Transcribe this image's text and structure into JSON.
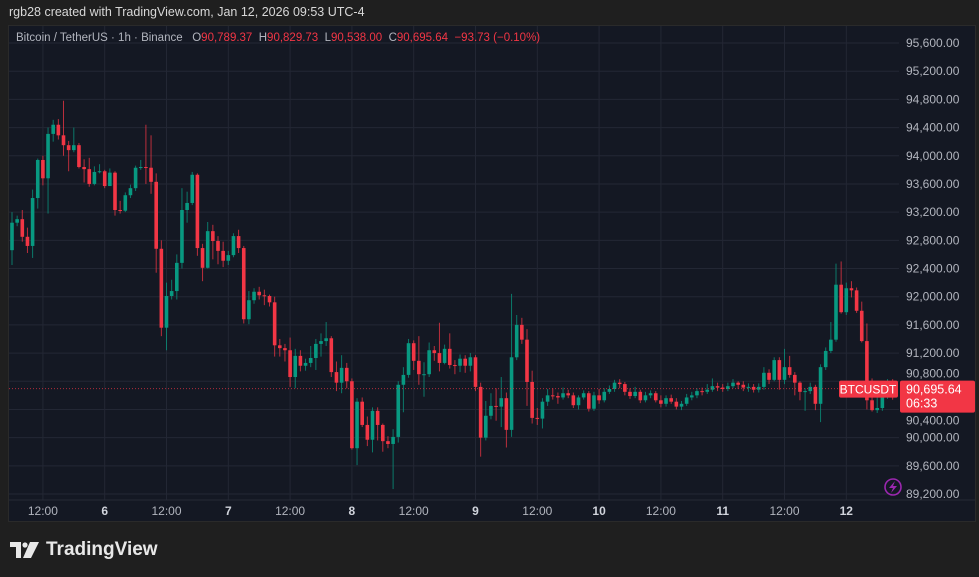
{
  "credit": "rgb28 created with TradingView.com, Jan 12, 2026 09:53 UTC-4",
  "legend": {
    "symbol": "Bitcoin / TetherUS · 1h · Binance",
    "o_label": "O",
    "o": "90,789.37",
    "h_label": "H",
    "h": "90,829.73",
    "l_label": "L",
    "l": "90,538.00",
    "c_label": "C",
    "c": "90,695.64",
    "change": "−93.73 (−0.10%)"
  },
  "price_label": {
    "ticker": "BTCUSDT",
    "price": "90,695.64",
    "countdown": "06:33"
  },
  "logo": "TradingView",
  "colors": {
    "up": "#089981",
    "down": "#f23645",
    "background": "#141823",
    "grid": "#232734",
    "axis_text": "#b2b5be"
  },
  "chart_data": {
    "type": "candlestick",
    "interval": "1h",
    "ylim": [
      89200,
      95600
    ],
    "grid": true,
    "yticks": [
      "95,600.00",
      "95,200.00",
      "94,800.00",
      "94,400.00",
      "94,000.00",
      "93,600.00",
      "93,200.00",
      "92,800.00",
      "92,400.00",
      "92,000.00",
      "91,600.00",
      "91,200.00",
      "90,800.00",
      "90,400.00",
      "90,000.00",
      "89,600.00",
      "89,200.00"
    ],
    "ytick_values": [
      95600,
      95200,
      94800,
      94400,
      94000,
      93600,
      93200,
      92800,
      92400,
      92000,
      91600,
      91200,
      90800,
      90400,
      90000,
      89600,
      89200
    ],
    "xticks": [
      {
        "label": "12:00",
        "candle": 6
      },
      {
        "label": "6",
        "candle": 18
      },
      {
        "label": "12:00",
        "candle": 30
      },
      {
        "label": "7",
        "candle": 42
      },
      {
        "label": "12:00",
        "candle": 54
      },
      {
        "label": "8",
        "candle": 66
      },
      {
        "label": "12:00",
        "candle": 78
      },
      {
        "label": "9",
        "candle": 90
      },
      {
        "label": "12:00",
        "candle": 102
      },
      {
        "label": "10",
        "candle": 114
      },
      {
        "label": "12:00",
        "candle": 126
      },
      {
        "label": "11",
        "candle": 138
      },
      {
        "label": "12:00",
        "candle": 150
      },
      {
        "label": "12",
        "candle": 162
      }
    ],
    "last_price": 90695.64,
    "candles_ohlc": [
      [
        92660,
        93200,
        92450,
        93050
      ],
      [
        93050,
        93150,
        93000,
        93100
      ],
      [
        93100,
        93230,
        92780,
        92850
      ],
      [
        92850,
        92980,
        92620,
        92720
      ],
      [
        92720,
        93520,
        92550,
        93400
      ],
      [
        93400,
        93960,
        93250,
        93940
      ],
      [
        93940,
        94000,
        93580,
        93680
      ],
      [
        93680,
        94400,
        93180,
        94310
      ],
      [
        94310,
        94510,
        94200,
        94440
      ],
      [
        94440,
        94520,
        94230,
        94290
      ],
      [
        94290,
        94780,
        94000,
        94150
      ],
      [
        94150,
        94210,
        93780,
        94080
      ],
      [
        94080,
        94400,
        94050,
        94150
      ],
      [
        94150,
        94180,
        93820,
        93840
      ],
      [
        93840,
        93950,
        93620,
        93810
      ],
      [
        93810,
        93970,
        93560,
        93600
      ],
      [
        93600,
        93850,
        93580,
        93770
      ],
      [
        93770,
        93880,
        93750,
        93780
      ],
      [
        93780,
        93800,
        93540,
        93570
      ],
      [
        93570,
        93820,
        93580,
        93760
      ],
      [
        93760,
        93780,
        93150,
        93230
      ],
      [
        93230,
        93360,
        93180,
        93220
      ],
      [
        93220,
        93480,
        93200,
        93440
      ],
      [
        93440,
        93590,
        93400,
        93540
      ],
      [
        93540,
        93860,
        93500,
        93830
      ],
      [
        93830,
        93940,
        93800,
        93840
      ],
      [
        93840,
        94440,
        93600,
        93830
      ],
      [
        93830,
        94290,
        93460,
        93630
      ],
      [
        93630,
        93750,
        92340,
        92680
      ],
      [
        92680,
        92800,
        91440,
        91560
      ],
      [
        91560,
        92200,
        91240,
        92010
      ],
      [
        92010,
        92240,
        91960,
        92080
      ],
      [
        92080,
        92600,
        91960,
        92480
      ],
      [
        92480,
        93540,
        92400,
        93230
      ],
      [
        93230,
        93490,
        93050,
        93330
      ],
      [
        93330,
        93770,
        93300,
        93730
      ],
      [
        93730,
        93750,
        92580,
        92690
      ],
      [
        92690,
        92750,
        92220,
        92410
      ],
      [
        92410,
        93060,
        92400,
        92930
      ],
      [
        92930,
        93020,
        92530,
        92790
      ],
      [
        92790,
        92860,
        92460,
        92650
      ],
      [
        92650,
        92780,
        92420,
        92510
      ],
      [
        92510,
        92650,
        92450,
        92590
      ],
      [
        92590,
        92900,
        92560,
        92860
      ],
      [
        92860,
        92950,
        92620,
        92690
      ],
      [
        92690,
        92720,
        91620,
        91680
      ],
      [
        91680,
        92080,
        91610,
        91950
      ],
      [
        91950,
        92120,
        91900,
        92070
      ],
      [
        92070,
        92140,
        91960,
        92020
      ],
      [
        92020,
        92100,
        91880,
        92010
      ],
      [
        92010,
        92030,
        91860,
        91920
      ],
      [
        91920,
        92000,
        91150,
        91310
      ],
      [
        91310,
        91400,
        91150,
        91270
      ],
      [
        91270,
        91330,
        91080,
        91240
      ],
      [
        91240,
        91420,
        90720,
        90860
      ],
      [
        90860,
        91260,
        90700,
        91160
      ],
      [
        91160,
        91240,
        90940,
        91020
      ],
      [
        91020,
        91120,
        90950,
        91060
      ],
      [
        91060,
        91300,
        91000,
        91130
      ],
      [
        91130,
        91400,
        90960,
        91330
      ],
      [
        91330,
        91480,
        91150,
        91370
      ],
      [
        91370,
        91640,
        91300,
        91410
      ],
      [
        91410,
        91440,
        90860,
        90930
      ],
      [
        90930,
        91080,
        90660,
        90780
      ],
      [
        90780,
        91170,
        90630,
        90990
      ],
      [
        90990,
        91060,
        90700,
        90800
      ],
      [
        90800,
        90840,
        89830,
        89850
      ],
      [
        89850,
        90560,
        89610,
        90510
      ],
      [
        90510,
        90570,
        90150,
        90180
      ],
      [
        90180,
        90300,
        89880,
        89970
      ],
      [
        89970,
        90430,
        89790,
        90380
      ],
      [
        90380,
        90430,
        89960,
        90180
      ],
      [
        90180,
        90200,
        89800,
        89950
      ],
      [
        89950,
        90020,
        89850,
        89910
      ],
      [
        89910,
        90120,
        89270,
        90010
      ],
      [
        90010,
        90800,
        89930,
        90750
      ],
      [
        90750,
        91000,
        90360,
        90890
      ],
      [
        90890,
        91400,
        90850,
        91340
      ],
      [
        91340,
        91380,
        90960,
        91090
      ],
      [
        91090,
        91440,
        90750,
        90900
      ],
      [
        90900,
        91070,
        90580,
        90900
      ],
      [
        90900,
        91350,
        90860,
        91240
      ],
      [
        91240,
        91300,
        91090,
        91200
      ],
      [
        91200,
        91630,
        90940,
        91060
      ],
      [
        91060,
        91320,
        91040,
        91260
      ],
      [
        91260,
        91480,
        90980,
        91030
      ],
      [
        91030,
        91100,
        90900,
        91020
      ],
      [
        91020,
        91180,
        90930,
        91120
      ],
      [
        91120,
        91170,
        90920,
        91020
      ],
      [
        91020,
        91200,
        90940,
        91140
      ],
      [
        91140,
        91170,
        90660,
        90720
      ],
      [
        90720,
        90780,
        89730,
        90000
      ],
      [
        90000,
        90520,
        89960,
        90310
      ],
      [
        90310,
        90630,
        90260,
        90450
      ],
      [
        90450,
        90700,
        90240,
        90440
      ],
      [
        90440,
        90860,
        90150,
        90560
      ],
      [
        90560,
        90640,
        89860,
        90110
      ],
      [
        90110,
        92040,
        90010,
        91140
      ],
      [
        91140,
        91740,
        91100,
        91600
      ],
      [
        91600,
        91700,
        91330,
        91390
      ],
      [
        91390,
        91540,
        90450,
        90790
      ],
      [
        90790,
        90950,
        90200,
        90280
      ],
      [
        90280,
        90420,
        90180,
        90270
      ],
      [
        90270,
        90560,
        90130,
        90510
      ],
      [
        90510,
        90690,
        90450,
        90600
      ],
      [
        90600,
        90700,
        90540,
        90590
      ],
      [
        90590,
        90640,
        90480,
        90570
      ],
      [
        90570,
        90710,
        90540,
        90630
      ],
      [
        90630,
        90680,
        90560,
        90600
      ],
      [
        90600,
        90640,
        90420,
        90460
      ],
      [
        90460,
        90600,
        90400,
        90570
      ],
      [
        90570,
        90670,
        90540,
        90630
      ],
      [
        90630,
        90660,
        90370,
        90410
      ],
      [
        90410,
        90650,
        90380,
        90600
      ],
      [
        90600,
        90690,
        90480,
        90530
      ],
      [
        90530,
        90700,
        90500,
        90650
      ],
      [
        90650,
        90740,
        90620,
        90690
      ],
      [
        90690,
        90820,
        90650,
        90780
      ],
      [
        90780,
        90830,
        90700,
        90760
      ],
      [
        90760,
        90790,
        90600,
        90650
      ],
      [
        90650,
        90700,
        90550,
        90590
      ],
      [
        90590,
        90720,
        90560,
        90650
      ],
      [
        90650,
        90680,
        90490,
        90530
      ],
      [
        90530,
        90650,
        90500,
        90600
      ],
      [
        90600,
        90670,
        90560,
        90630
      ],
      [
        90630,
        90660,
        90500,
        90530
      ],
      [
        90530,
        90600,
        90430,
        90480
      ],
      [
        90480,
        90600,
        90440,
        90560
      ],
      [
        90560,
        90610,
        90480,
        90510
      ],
      [
        90510,
        90560,
        90400,
        90440
      ],
      [
        90440,
        90520,
        90390,
        90480
      ],
      [
        90480,
        90620,
        90450,
        90570
      ],
      [
        90570,
        90650,
        90530,
        90600
      ],
      [
        90600,
        90700,
        90560,
        90660
      ],
      [
        90660,
        90710,
        90600,
        90650
      ],
      [
        90650,
        90760,
        90620,
        90680
      ],
      [
        90680,
        90840,
        90650,
        90730
      ],
      [
        90730,
        90780,
        90660,
        90710
      ],
      [
        90710,
        90760,
        90650,
        90690
      ],
      [
        90690,
        90780,
        90660,
        90730
      ],
      [
        90730,
        90830,
        90700,
        90780
      ],
      [
        90780,
        90800,
        90690,
        90750
      ],
      [
        90750,
        90800,
        90660,
        90710
      ],
      [
        90710,
        90770,
        90650,
        90720
      ],
      [
        90720,
        90760,
        90640,
        90680
      ],
      [
        90680,
        90770,
        90640,
        90720
      ],
      [
        90720,
        91000,
        90680,
        90920
      ],
      [
        90920,
        90970,
        90760,
        90820
      ],
      [
        90820,
        91140,
        90800,
        91100
      ],
      [
        91100,
        91140,
        90680,
        90820
      ],
      [
        90820,
        91260,
        90760,
        91000
      ],
      [
        91000,
        91160,
        90850,
        90890
      ],
      [
        90890,
        90930,
        90600,
        90780
      ],
      [
        90780,
        90800,
        90530,
        90650
      ],
      [
        90650,
        90700,
        90380,
        90660
      ],
      [
        90660,
        90780,
        90620,
        90720
      ],
      [
        90720,
        90750,
        90390,
        90480
      ],
      [
        90480,
        91040,
        90220,
        91000
      ],
      [
        91000,
        91280,
        90960,
        91230
      ],
      [
        91230,
        91640,
        91200,
        91390
      ],
      [
        91390,
        92470,
        91360,
        92170
      ],
      [
        92170,
        92500,
        91760,
        91780
      ],
      [
        91780,
        92200,
        91740,
        92120
      ],
      [
        92120,
        92220,
        91990,
        92090
      ],
      [
        92090,
        92130,
        91770,
        91800
      ],
      [
        91800,
        91930,
        91350,
        91370
      ],
      [
        91370,
        91620,
        90400,
        90530
      ],
      [
        90530,
        90840,
        90370,
        90390
      ],
      [
        90390,
        90750,
        90350,
        90420
      ],
      [
        90420,
        90740,
        90380,
        90600
      ],
      [
        90600,
        90830,
        90550,
        90789.37
      ],
      [
        90789.37,
        90829.73,
        90538,
        90695.64
      ]
    ]
  }
}
